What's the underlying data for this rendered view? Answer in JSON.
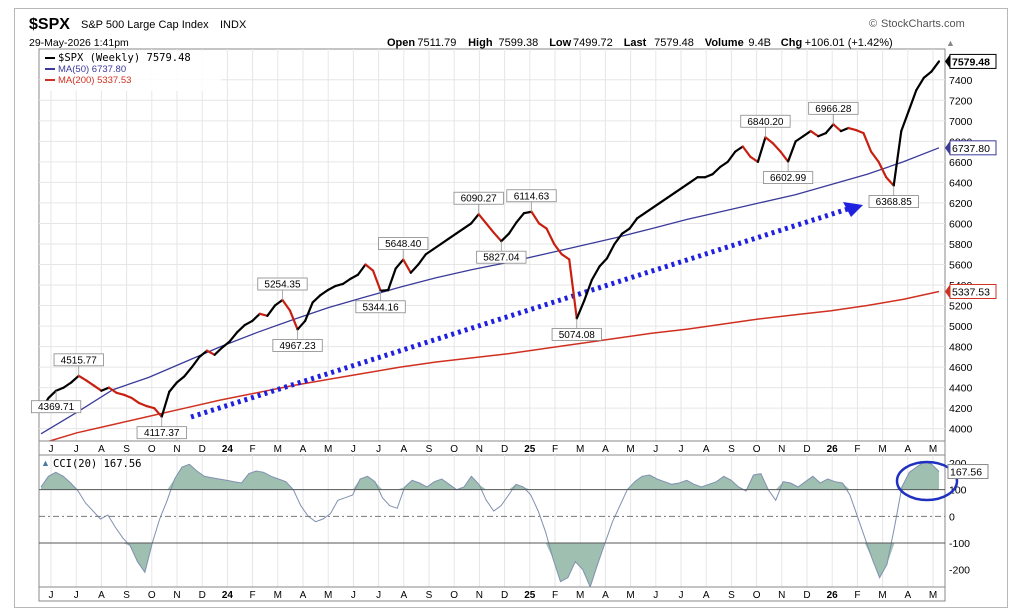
{
  "header": {
    "symbol": "$SPX",
    "name": "S&P 500 Large Cap Index",
    "exchange": "INDX",
    "brand": "StockCharts.com",
    "timestamp": "29-May-2026 1:41pm",
    "quote": [
      {
        "label": "Open",
        "value": "7511.79"
      },
      {
        "label": "High",
        "value": "7599.38"
      },
      {
        "label": "Low",
        "value": "7499.72"
      },
      {
        "label": "Last",
        "value": "7579.48"
      },
      {
        "label": "Volume",
        "value": "9.4B"
      },
      {
        "label": "Chg",
        "value": "+106.01 (+1.42%)"
      }
    ]
  },
  "legend": [
    {
      "text": "$SPX (Weekly) 7579.48",
      "color": "#000000"
    },
    {
      "text": "MA(50) 6737.80",
      "color": "#3a3a9a"
    },
    {
      "text": "MA(200) 5337.53",
      "color": "#d03020"
    }
  ],
  "cci_label": "CCI(20) 167.56",
  "chart_data": [
    {
      "type": "line",
      "title": "$SPX S&P 500 Large Cap Index INDX",
      "x_ticks": [
        "J",
        "J",
        "A",
        "S",
        "O",
        "N",
        "D",
        "24",
        "F",
        "M",
        "A",
        "M",
        "J",
        "J",
        "A",
        "S",
        "O",
        "N",
        "D",
        "25",
        "F",
        "M",
        "A",
        "M",
        "J",
        "J",
        "A",
        "S",
        "O",
        "N",
        "D",
        "26",
        "F",
        "M",
        "A",
        "M"
      ],
      "y_ticks": [
        4000,
        4200,
        4400,
        4600,
        4800,
        5000,
        5200,
        5400,
        5600,
        5800,
        6000,
        6200,
        6400,
        6600,
        6800,
        7000,
        7200,
        7400
      ],
      "ylim": [
        3880,
        7700
      ],
      "grid": true,
      "y_axis_side": "right",
      "series": [
        {
          "name": "$SPX (Weekly)",
          "color": "#000000",
          "down_color": "#c82010",
          "values": [
            4180,
            4300,
            4370,
            4400,
            4450,
            4515,
            4470,
            4420,
            4370,
            4400,
            4350,
            4330,
            4300,
            4250,
            4220,
            4200,
            4117,
            4360,
            4450,
            4510,
            4600,
            4700,
            4760,
            4720,
            4790,
            4850,
            4940,
            5010,
            5050,
            5120,
            5100,
            5200,
            5254,
            5150,
            4967,
            5050,
            5230,
            5300,
            5350,
            5390,
            5410,
            5460,
            5500,
            5600,
            5540,
            5344,
            5350,
            5560,
            5648,
            5520,
            5600,
            5700,
            5750,
            5800,
            5850,
            5900,
            5950,
            6000,
            6090,
            6000,
            5910,
            5827,
            5900,
            6010,
            6100,
            6114,
            6000,
            5950,
            5800,
            5700,
            5650,
            5074,
            5250,
            5450,
            5580,
            5660,
            5800,
            5900,
            5950,
            6050,
            6100,
            6150,
            6200,
            6250,
            6300,
            6350,
            6400,
            6450,
            6450,
            6480,
            6550,
            6600,
            6700,
            6750,
            6650,
            6600,
            6840,
            6780,
            6700,
            6603,
            6800,
            6850,
            6900,
            6850,
            6880,
            6966,
            6900,
            6930,
            6910,
            6880,
            6700,
            6600,
            6450,
            6369,
            6900,
            7100,
            7300,
            7420,
            7480,
            7579
          ]
        },
        {
          "name": "MA(50)",
          "color": "#3a3a9a",
          "values": [
            3950,
            4160,
            4380,
            4500,
            4650,
            4800,
            4935,
            5060,
            5180,
            5280,
            5380,
            5470,
            5550,
            5620,
            5700,
            5780,
            5860,
            5950,
            6040,
            6120,
            6200,
            6280,
            6380,
            6480,
            6600,
            6737
          ]
        },
        {
          "name": "MA(200)",
          "color": "#d03020",
          "values": [
            3855,
            3960,
            4040,
            4120,
            4200,
            4280,
            4350,
            4420,
            4480,
            4540,
            4600,
            4650,
            4690,
            4730,
            4780,
            4830,
            4880,
            4930,
            4970,
            5020,
            5070,
            5110,
            5150,
            5200,
            5260,
            5337
          ]
        }
      ],
      "annotations": [
        "4515.77",
        "4369.71",
        "4117.37",
        "5254.35",
        "4967.23",
        "5648.40",
        "5344.16",
        "6090.27",
        "5827.04",
        "6114.63",
        "5074.08",
        "6840.20",
        "6602.99",
        "6966.28",
        "6368.85"
      ],
      "last_labels": [
        "7579.48",
        "6737.80",
        "5337.53"
      ]
    },
    {
      "type": "area",
      "title": "CCI(20) 167.56",
      "y_ticks": [
        -200,
        -100,
        0,
        100,
        200
      ],
      "ylim": [
        -265,
        230
      ],
      "reference_lines": [
        100,
        0,
        -100
      ],
      "last_label": "167.56",
      "series": [
        {
          "name": "CCI(20)",
          "color": "#8090b0",
          "fill": "#9fbfb0",
          "values": [
            110,
            150,
            165,
            150,
            125,
            95,
            50,
            20,
            -10,
            5,
            -40,
            -80,
            -110,
            -170,
            -210,
            -100,
            -10,
            60,
            140,
            185,
            195,
            170,
            150,
            145,
            140,
            135,
            130,
            125,
            160,
            170,
            165,
            150,
            140,
            130,
            100,
            40,
            0,
            -20,
            -10,
            10,
            60,
            70,
            80,
            140,
            150,
            130,
            70,
            40,
            30,
            110,
            135,
            125,
            110,
            130,
            140,
            120,
            100,
            110,
            150,
            120,
            60,
            20,
            40,
            80,
            120,
            110,
            80,
            20,
            -60,
            -160,
            -245,
            -230,
            -170,
            -200,
            -265,
            -180,
            -100,
            -20,
            40,
            100,
            130,
            150,
            155,
            140,
            130,
            120,
            125,
            135,
            120,
            110,
            120,
            130,
            150,
            135,
            110,
            95,
            155,
            160,
            100,
            60,
            130,
            125,
            110,
            130,
            150,
            125,
            140,
            130,
            125,
            80,
            0,
            -80,
            -160,
            -230,
            -180,
            -40,
            110,
            165,
            185,
            205,
            195,
            168
          ]
        }
      ]
    }
  ]
}
